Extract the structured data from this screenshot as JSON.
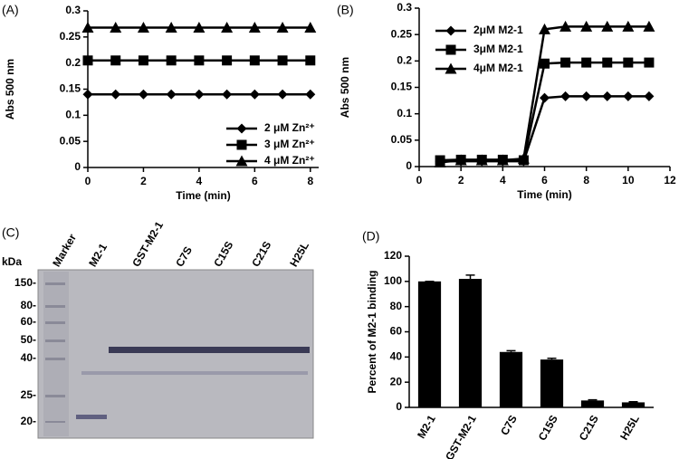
{
  "chart_data": [
    {
      "type": "line",
      "label": "(A)",
      "x_label": "Time (min)",
      "y_label": "Abs 500 nm",
      "x": [
        0,
        1,
        2,
        3,
        4,
        5,
        6,
        7,
        8
      ],
      "series": [
        {
          "name": "2 μM Zn²⁺",
          "color": "#000000",
          "marker": "diamond",
          "values": [
            0.14,
            0.14,
            0.14,
            0.14,
            0.14,
            0.14,
            0.14,
            0.14,
            0.14
          ]
        },
        {
          "name": "3 μM Zn²⁺",
          "color": "#000000",
          "marker": "square",
          "values": [
            0.205,
            0.205,
            0.205,
            0.205,
            0.205,
            0.205,
            0.205,
            0.205,
            0.205
          ]
        },
        {
          "name": "4 μM Zn²⁺",
          "color": "#000000",
          "marker": "triangle",
          "values": [
            0.268,
            0.268,
            0.268,
            0.268,
            0.268,
            0.268,
            0.268,
            0.268,
            0.268
          ]
        }
      ],
      "xlim": [
        0,
        8.3
      ],
      "xticks": [
        0,
        2,
        4,
        6,
        8
      ],
      "ylim": [
        0,
        0.3
      ],
      "yticks": [
        0,
        0.05,
        0.1,
        0.15,
        0.2,
        0.25,
        0.3
      ],
      "legend": "lower right"
    },
    {
      "type": "line",
      "label": "(B)",
      "x_label": "Time (min)",
      "y_label": "Abs  500 nm",
      "x": [
        1,
        2,
        3,
        4,
        5,
        6,
        7,
        8,
        9,
        10,
        11
      ],
      "series": [
        {
          "name": "2μM M2-1",
          "color": "#000000",
          "marker": "diamond",
          "values": [
            0.01,
            0.01,
            0.01,
            0.01,
            0.01,
            0.13,
            0.133,
            0.133,
            0.133,
            0.133,
            0.133
          ]
        },
        {
          "name": "3μM M2-1",
          "color": "#000000",
          "marker": "square",
          "values": [
            0.012,
            0.013,
            0.013,
            0.013,
            0.012,
            0.195,
            0.197,
            0.197,
            0.197,
            0.197,
            0.197
          ]
        },
        {
          "name": "4μM M2-1",
          "color": "#000000",
          "marker": "triangle",
          "values": [
            0.008,
            0.012,
            0.012,
            0.012,
            0.015,
            0.26,
            0.265,
            0.265,
            0.265,
            0.265,
            0.265
          ]
        }
      ],
      "xlim": [
        0,
        12
      ],
      "xticks": [
        0,
        2,
        4,
        6,
        8,
        10,
        12
      ],
      "ylim": [
        0,
        0.3
      ],
      "yticks": [
        0,
        0.05,
        0.1,
        0.15,
        0.2,
        0.25,
        0.3
      ],
      "legend": "upper left"
    },
    {
      "type": "bar",
      "label": "(D)",
      "y_label": "Percent of M2-1 binding",
      "categories": [
        "M2-1",
        "GST-M2-1",
        "C7S",
        "C15S",
        "C21S",
        "H25L"
      ],
      "values": [
        100,
        102,
        44,
        38,
        5.5,
        4
      ],
      "errors": [
        0,
        3,
        1,
        1,
        0.5,
        0.5
      ],
      "color": "#000000",
      "ylim": [
        0,
        120
      ],
      "yticks": [
        0,
        20,
        40,
        60,
        80,
        100,
        120
      ]
    }
  ],
  "gel": {
    "label": "(C)",
    "unit": "kDa",
    "marker_labels": [
      "150-",
      "80-",
      "60-",
      "50-",
      "40-",
      "25-",
      "20-"
    ],
    "lanes": [
      "Marker",
      "M2-1",
      "GST-M2-1",
      "C7S",
      "C15S",
      "C21S",
      "H25L"
    ]
  }
}
